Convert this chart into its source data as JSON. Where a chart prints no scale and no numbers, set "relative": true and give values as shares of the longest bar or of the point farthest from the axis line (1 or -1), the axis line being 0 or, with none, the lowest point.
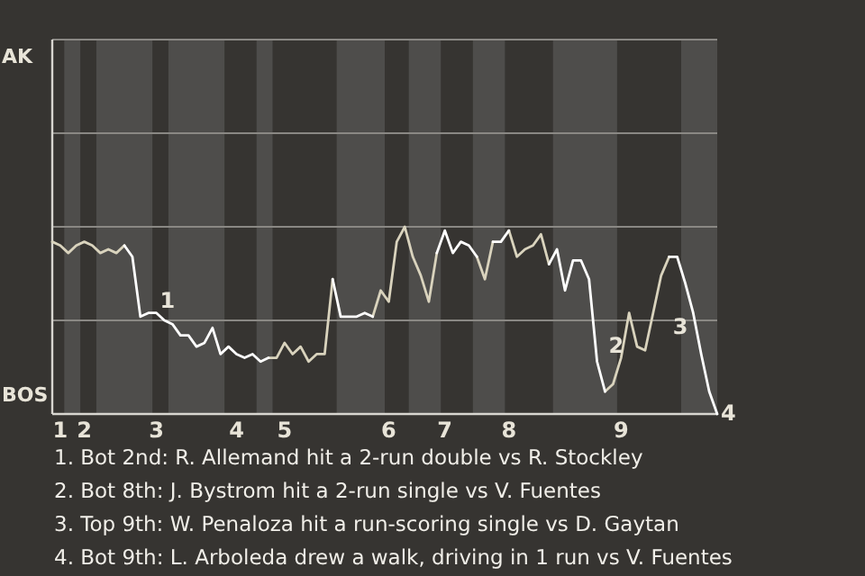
{
  "chart_data": {
    "type": "line",
    "relative": true,
    "categories": [
      null,
      "1",
      null,
      null,
      "2",
      null,
      null,
      null,
      null,
      null,
      null,
      null,
      null,
      "3",
      null,
      null,
      null,
      null,
      null,
      null,
      null,
      null,
      null,
      "4",
      null,
      null,
      null,
      null,
      null,
      "5",
      null,
      null,
      null,
      null,
      null,
      null,
      null,
      null,
      null,
      null,
      null,
      null,
      "6",
      null,
      null,
      null,
      null,
      null,
      null,
      "7",
      null,
      null,
      null,
      null,
      null,
      null,
      null,
      "8",
      null,
      null,
      null,
      null,
      null,
      null,
      null,
      null,
      null,
      null,
      null,
      null,
      null,
      "9",
      null,
      null,
      null,
      null,
      null,
      null,
      null,
      null,
      null,
      null,
      null,
      null
    ],
    "series": [
      {
        "color": "#d9d3bd",
        "values": [
          0.92,
          0.9,
          0.86,
          0.9,
          0.92,
          0.9,
          0.86,
          0.88,
          0.86,
          0.9,
          null,
          null,
          null,
          null,
          null,
          null,
          null,
          null,
          null,
          null,
          null,
          null,
          null,
          null,
          null,
          null,
          null,
          0.3,
          0.3,
          0.38,
          0.32,
          0.36,
          0.28,
          0.32,
          0.32,
          0.72,
          null,
          null,
          null,
          null,
          0.52,
          0.66,
          0.6,
          0.92,
          1,
          0.84,
          0.74,
          0.6,
          0.86,
          null,
          null,
          null,
          null,
          0.84,
          0.72,
          0.92,
          null,
          0.98,
          0.84,
          0.88,
          0.9,
          0.96,
          0.8,
          null,
          null,
          null,
          null,
          null,
          null,
          0.12,
          0.16,
          0.3,
          0.54,
          0.36,
          0.34,
          0.54,
          0.74,
          0.84,
          null,
          null,
          null,
          null,
          null,
          null
        ]
      },
      {
        "color": "#ffffff",
        "values": [
          null,
          null,
          null,
          null,
          null,
          null,
          null,
          null,
          null,
          0.9,
          0.84,
          0.52,
          0.54,
          0.54,
          0.5,
          0.48,
          0.42,
          0.42,
          0.36,
          0.38,
          0.46,
          0.32,
          0.36,
          0.32,
          0.3,
          0.32,
          0.28,
          0.3,
          null,
          null,
          null,
          null,
          null,
          null,
          null,
          0.72,
          0.52,
          0.52,
          0.52,
          0.54,
          0.52,
          null,
          null,
          null,
          null,
          null,
          null,
          null,
          0.86,
          0.98,
          0.86,
          0.92,
          0.9,
          0.84,
          null,
          0.92,
          0.92,
          0.98,
          null,
          null,
          null,
          null,
          0.8,
          0.88,
          0.66,
          0.82,
          0.82,
          0.72,
          0.28,
          0.12,
          null,
          null,
          null,
          null,
          null,
          null,
          null,
          0.84,
          0.84,
          0.7,
          0.54,
          0.32,
          0.12,
          0
        ]
      }
    ],
    "ref_lines": [
      {
        "axis": "y",
        "value": 0.5,
        "color": "#8a8884"
      },
      {
        "axis": "y",
        "value": 1,
        "color": "#8a8884"
      },
      {
        "axis": "y",
        "value": 1.5,
        "color": "#8a8884"
      }
    ],
    "annotations": [
      "AK",
      "BOS",
      "1",
      "2",
      "3",
      "4",
      "1. Bot 2nd: R. Allemand hit a 2-run double vs R. Stockley",
      "2. Bot 8th: J. Bystrom hit a 2-run single vs V. Fuentes",
      "3. Top 9th: W. Penaloza hit a run-scoring single vs D. Gaytan",
      "4. Bot 9th: L. Arboleda drew a walk, driving in 1 run vs V. Fuentes"
    ]
  }
}
